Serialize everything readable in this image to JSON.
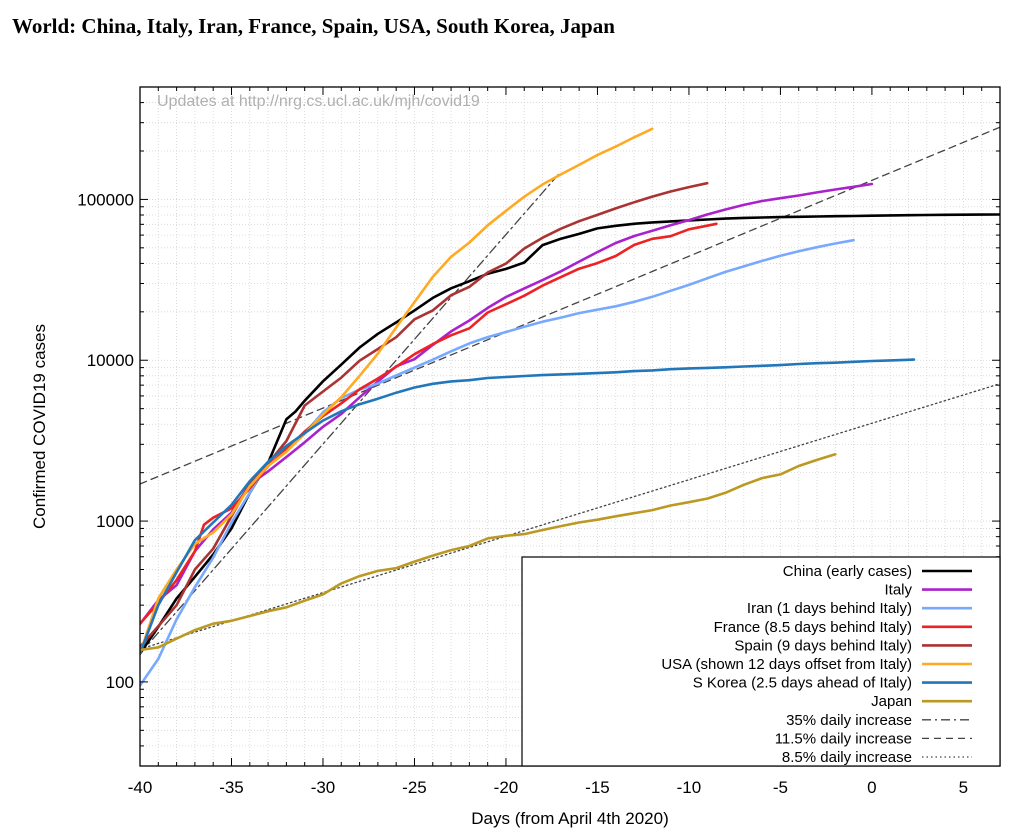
{
  "page": {
    "title": "World: China, Italy, Iran, France, Spain, USA, South Korea, Japan"
  },
  "chart_data": {
    "type": "line",
    "xlabel": "Days (from April 4th 2020)",
    "ylabel": "Confirmed COVID19 cases",
    "xlim": [
      -40,
      7
    ],
    "ylim": [
      30,
      500000
    ],
    "ylog": true,
    "grid": true,
    "x_ticks": [
      -40,
      -35,
      -30,
      -25,
      -20,
      -15,
      -10,
      -5,
      0,
      5
    ],
    "y_ticks": [
      100,
      1000,
      10000,
      100000
    ],
    "annotation": "Updates at http://nrg.cs.ucl.ac.uk/mjh/covid19",
    "legend_position": "bottom-right",
    "series": [
      {
        "name": "China (early cases)",
        "color": "#000000",
        "dash": "solid",
        "x": [
          -40,
          -39,
          -38,
          -37,
          -36,
          -35,
          -34,
          -33,
          -32,
          -31.5,
          -31,
          -30,
          -29,
          -28,
          -27,
          -26,
          -25,
          -24,
          -23,
          -22,
          -21,
          -20,
          -19,
          -18,
          -17,
          -16,
          -15,
          -14,
          -13,
          -12,
          -11,
          -10,
          -9,
          -8,
          -7,
          -6,
          -5,
          -4,
          -3,
          -2,
          -1,
          0,
          1,
          2,
          3,
          4,
          5,
          6,
          7
        ],
        "y": [
          150,
          220,
          330,
          450,
          620,
          900,
          1500,
          2300,
          4300,
          4800,
          5600,
          7400,
          9400,
          12000,
          14600,
          17200,
          20400,
          24400,
          28000,
          31000,
          34500,
          37000,
          40500,
          52000,
          57000,
          61000,
          66000,
          68500,
          70500,
          72000,
          73000,
          74000,
          75000,
          76000,
          76800,
          77200,
          77600,
          78000,
          78300,
          78600,
          78900,
          79200,
          79500,
          79800,
          80000,
          80200,
          80400,
          80500,
          80600
        ]
      },
      {
        "name": "Italy",
        "color": "#aa22cc",
        "dash": "solid",
        "x": [
          -40,
          -39,
          -38,
          -37,
          -36,
          -35,
          -34,
          -33,
          -32,
          -31,
          -30,
          -29,
          -28,
          -27,
          -26,
          -25,
          -24,
          -23,
          -22,
          -21,
          -20,
          -19,
          -18,
          -17,
          -16,
          -15,
          -14,
          -13,
          -12,
          -11,
          -10,
          -9,
          -8,
          -7,
          -6,
          -5,
          -4,
          -3,
          -2,
          -1,
          0
        ],
        "y": [
          229,
          322,
          400,
          650,
          888,
          1128,
          1694,
          2036,
          2502,
          3089,
          3858,
          4636,
          5883,
          7375,
          9172,
          10149,
          12462,
          15113,
          17660,
          21157,
          24747,
          27980,
          31506,
          35713,
          41035,
          47021,
          53578,
          59138,
          63927,
          69176,
          74386,
          80589,
          86498,
          92472,
          97689,
          101739,
          105792,
          110574,
          115242,
          119827,
          124632
        ]
      },
      {
        "name": "Iran (1 days behind Italy)",
        "color": "#77aaff",
        "dash": "solid",
        "x": [
          -40,
          -39,
          -38,
          -37,
          -36,
          -35,
          -34,
          -33,
          -32,
          -31,
          -30,
          -29,
          -28,
          -27,
          -26,
          -25,
          -24,
          -23,
          -22,
          -21,
          -20,
          -19,
          -18,
          -17,
          -16,
          -15,
          -14,
          -13,
          -12,
          -11,
          -10,
          -9,
          -8,
          -7,
          -6,
          -5,
          -4,
          -3,
          -2,
          -1
        ],
        "y": [
          95,
          139,
          245,
          388,
          593,
          978,
          1501,
          2336,
          2922,
          3513,
          4747,
          5823,
          6566,
          7161,
          8042,
          9000,
          10075,
          11364,
          12729,
          13938,
          14991,
          16169,
          17361,
          18407,
          19644,
          20610,
          21638,
          23049,
          24811,
          27017,
          29406,
          32332,
          35408,
          38309,
          41495,
          44605,
          47593,
          50468,
          53183,
          55743
        ]
      },
      {
        "name": "France (8.5 days behind Italy)",
        "color": "#ee2222",
        "dash": "solid",
        "x": [
          -40,
          -39,
          -38,
          -37,
          -36.5,
          -36,
          -35,
          -34,
          -33,
          -32,
          -31,
          -30,
          -29,
          -28,
          -27,
          -26,
          -25,
          -24,
          -23,
          -22,
          -21,
          -20,
          -19,
          -18,
          -17,
          -16,
          -15,
          -14,
          -13,
          -12,
          -11,
          -10,
          -9,
          -8.5
        ],
        "y": [
          230,
          310,
          430,
          650,
          950,
          1050,
          1200,
          1600,
          2200,
          2800,
          3600,
          4500,
          5400,
          6600,
          7700,
          9100,
          10900,
          12600,
          14300,
          15800,
          19800,
          22300,
          25200,
          29100,
          32900,
          37100,
          40200,
          44500,
          52100,
          56900,
          59100,
          65200,
          68600,
          70500
        ]
      },
      {
        "name": "Spain (9 days behind Italy)",
        "color": "#aa3333",
        "dash": "solid",
        "x": [
          -40,
          -39,
          -38,
          -37,
          -36,
          -35,
          -34,
          -33,
          -32,
          -31,
          -30,
          -29,
          -28,
          -27,
          -26,
          -25,
          -24,
          -23,
          -22,
          -21,
          -20,
          -19,
          -18,
          -17,
          -16,
          -15,
          -14,
          -13,
          -12,
          -11,
          -10,
          -9
        ],
        "y": [
          165,
          222,
          300,
          500,
          673,
          1073,
          1695,
          2277,
          3146,
          5232,
          6391,
          7798,
          9942,
          11748,
          13910,
          17963,
          20410,
          25374,
          28603,
          35136,
          39885,
          49515,
          57786,
          65719,
          73235,
          80110,
          87956,
          95923,
          104118,
          112065,
          119199,
          126168
        ]
      },
      {
        "name": "USA (shown 12 days offset from Italy)",
        "color": "#ffaa22",
        "dash": "solid",
        "x": [
          -40,
          -39,
          -38,
          -37,
          -36,
          -35,
          -34,
          -33,
          -32,
          -31,
          -30,
          -29,
          -28,
          -27,
          -26,
          -25,
          -24,
          -23,
          -22,
          -21,
          -20,
          -19,
          -18,
          -17,
          -16,
          -15,
          -14,
          -13,
          -12
        ],
        "y": [
          150,
          330,
          500,
          720,
          850,
          1100,
          1650,
          2200,
          2700,
          3500,
          4600,
          5900,
          8000,
          11000,
          16000,
          23000,
          33000,
          44000,
          54000,
          69000,
          85000,
          104000,
          124000,
          143000,
          164000,
          189000,
          213000,
          243000,
          275000
        ]
      },
      {
        "name": "S Korea (2.5 days ahead of Italy)",
        "color": "#2277bb",
        "dash": "solid",
        "x": [
          -40,
          -39,
          -38,
          -37,
          -36,
          -35,
          -34,
          -33,
          -32,
          -31,
          -30,
          -29,
          -28,
          -27,
          -26,
          -25,
          -24,
          -23,
          -22,
          -21,
          -20,
          -19,
          -18,
          -17,
          -16,
          -15,
          -14,
          -13,
          -12,
          -11,
          -10,
          -9,
          -8,
          -7,
          -6,
          -5,
          -4,
          -3,
          -2,
          -1,
          0,
          1,
          2,
          2.3
        ],
        "y": [
          150,
          300,
          480,
          760,
          980,
          1260,
          1770,
          2337,
          2931,
          3526,
          4212,
          4812,
          5328,
          5766,
          6284,
          6767,
          7134,
          7382,
          7513,
          7755,
          7869,
          7979,
          8086,
          8162,
          8236,
          8320,
          8413,
          8565,
          8652,
          8799,
          8897,
          8961,
          9037,
          9137,
          9241,
          9332,
          9478,
          9583,
          9661,
          9786,
          9887,
          9976,
          10062,
          10100
        ]
      },
      {
        "name": "Japan",
        "color": "#bb9922",
        "dash": "solid",
        "x": [
          -40,
          -39,
          -38,
          -37,
          -36,
          -35,
          -34,
          -33,
          -32,
          -31,
          -30,
          -29,
          -28,
          -27,
          -26,
          -25,
          -24,
          -23,
          -22,
          -21,
          -20,
          -19,
          -18,
          -17,
          -16,
          -15,
          -14,
          -13,
          -12,
          -11,
          -10,
          -9,
          -8,
          -7,
          -6,
          -5,
          -4,
          -3,
          -2
        ],
        "y": [
          158,
          164,
          186,
          210,
          230,
          240,
          257,
          275,
          291,
          320,
          350,
          410,
          455,
          490,
          510,
          560,
          610,
          660,
          700,
          780,
          810,
          830,
          880,
          930,
          980,
          1020,
          1070,
          1120,
          1170,
          1250,
          1310,
          1380,
          1500,
          1680,
          1850,
          1950,
          2200,
          2400,
          2600
        ]
      },
      {
        "name": "35% daily increase",
        "color": "#444444",
        "dash": "dashdot",
        "x": [
          -40,
          -17
        ],
        "y": [
          150,
          149000
        ]
      },
      {
        "name": "11.5% daily increase",
        "color": "#444444",
        "dash": "dashed",
        "x": [
          -40,
          7
        ],
        "y": [
          1700,
          281000
        ]
      },
      {
        "name": "8.5% daily increase",
        "color": "#444444",
        "dash": "dotted",
        "x": [
          -40,
          7
        ],
        "y": [
          160,
          7150
        ]
      }
    ]
  }
}
